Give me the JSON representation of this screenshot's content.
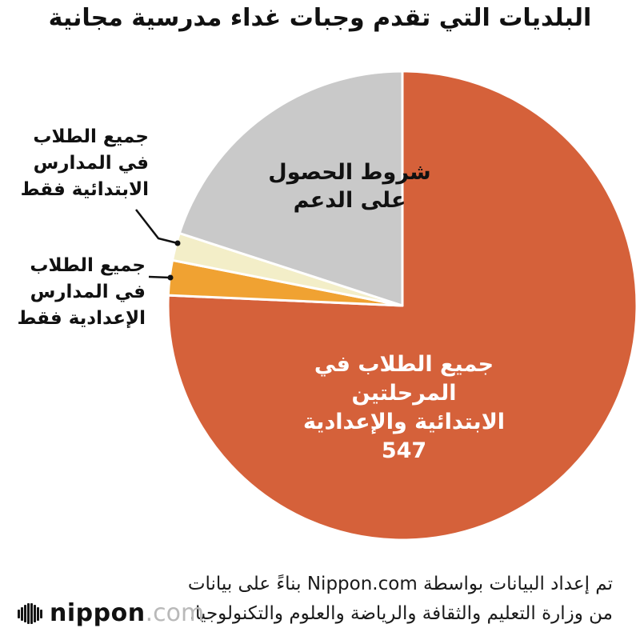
{
  "title": "البلديات التي تقدم وجبات غداء مدرسية مجانية",
  "chart_data": {
    "type": "pie",
    "title": "البلديات التي تقدم وجبات غداء مدرسية مجانية",
    "direction": "clockwise",
    "start_angle_deg": 0,
    "legend": "none",
    "slices": [
      {
        "id": "all-students-both-levels",
        "label": "جميع الطلاب في المرحلتين الابتدائية والإعدادية",
        "value": 547,
        "pct": 75.7,
        "color": "#d5613a",
        "label_color": "#ffffff"
      },
      {
        "id": "junior-high-only",
        "label": "جميع الطلاب في المدارس الإعدادية فقط",
        "pct": 2.4,
        "color": "#f0a232"
      },
      {
        "id": "elementary-only",
        "label": "جميع الطلاب في المدارس الابتدائية فقط",
        "pct": 1.9,
        "color": "#f3eec8"
      },
      {
        "id": "support-conditions",
        "label": "شروط الحصول على الدعم",
        "pct": 20.0,
        "color": "#c9c9c9"
      }
    ]
  },
  "labels": {
    "support_line1": "شروط الحصول",
    "support_line2": "على الدعم",
    "main_line1": "جميع الطلاب في المرحلتين",
    "main_line2": "الابتدائية والإعدادية",
    "elem_line1": "جميع الطلاب",
    "elem_line2": "في المدارس",
    "elem_line3": "الابتدائية فقط",
    "jr_line1": "جميع الطلاب",
    "jr_line2": "في المدارس",
    "jr_line3": "الإعدادية فقط"
  },
  "footer": {
    "line1": "تم إعداد البيانات بواسطة Nippon.com بناءً على بيانات",
    "line2": "من وزارة التعليم والثقافة والرياضة والعلوم والتكنولوجيا."
  },
  "logo": {
    "name": "nippon",
    "tld": ".com"
  }
}
